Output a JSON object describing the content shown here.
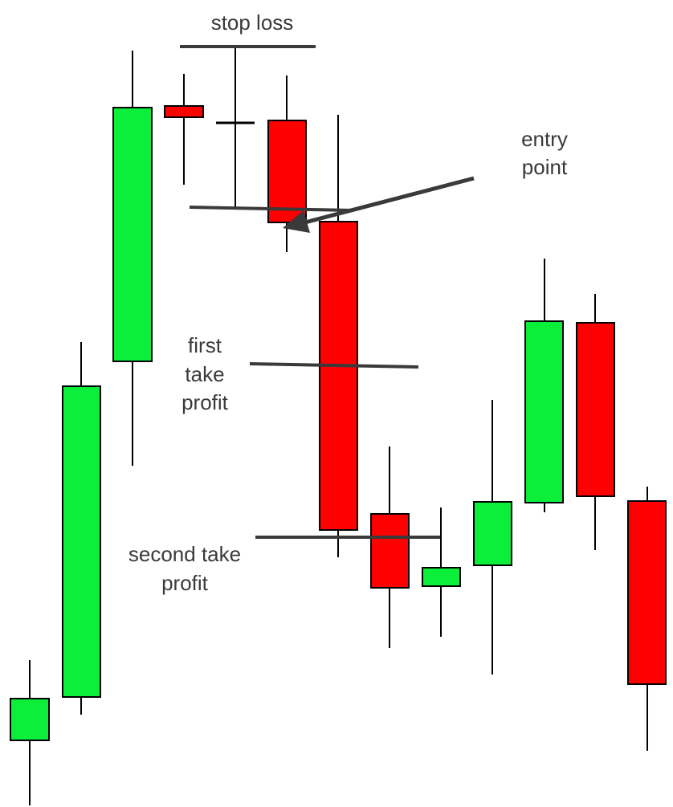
{
  "annotations": [
    {
      "lines": [
        "stop loss"
      ]
    },
    {
      "lines": [
        "entry",
        "point"
      ]
    },
    {
      "lines": [
        "first",
        "take",
        "profit"
      ]
    },
    {
      "lines": [
        "second take",
        "profit"
      ]
    }
  ]
}
